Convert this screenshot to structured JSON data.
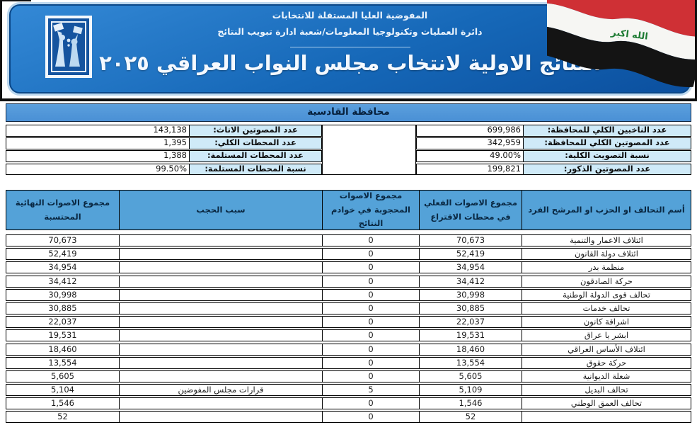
{
  "banner": {
    "line1": "المفوضية العليا المستقلة للانتخابات",
    "line2": "دائرة العمليات وتكنولوجيا المعلومات/شعبة ادارة تبويب النتائج",
    "title": "النتائج الاولية لانتخاب مجلس النواب العراقي ٢٠٢٥",
    "flag_text": "الله اكبر"
  },
  "governorate": {
    "title": "محافظة القادسية"
  },
  "summary": {
    "right": [
      {
        "label": "عدد الناخبين الكلي للمحافظة:",
        "value": "699,986"
      },
      {
        "label": "عدد المصوتين الكلي للمحافظة:",
        "value": "342,959"
      },
      {
        "label": "نسبة التصويت الكلية:",
        "value": "49.00%"
      },
      {
        "label": "عدد المصوتين الذكور:",
        "value": "199,821"
      }
    ],
    "left": [
      {
        "label": "عدد المصوتين الاناث:",
        "value": "143,138"
      },
      {
        "label": "عدد المحطات الكلي:",
        "value": "1,395"
      },
      {
        "label": "عدد المحطات المستلمة:",
        "value": "1,388"
      },
      {
        "label": "نسبة المحطات المستلمة:",
        "value": "99.50%"
      }
    ]
  },
  "results_table": {
    "headers": {
      "name": "أسم التحالف او الحزب او المرشح الفرد",
      "actual": "مجموع الاصوات الفعلي في محطات الاقتراع",
      "withheld": "مجموع الاصوات المحجوبة في خوادم النتائج",
      "reason": "سبب الحجب",
      "final": "مجموع الاصوات النهائية المحتسبة"
    },
    "rows": [
      {
        "name": "ائتلاف الاعمار والتنمية",
        "actual": "70,673",
        "withheld": "0",
        "reason": "",
        "final": "70,673"
      },
      {
        "name": "ائتلاف دولة القانون",
        "actual": "52,419",
        "withheld": "0",
        "reason": "",
        "final": "52,419"
      },
      {
        "name": "منظمة بدر",
        "actual": "34,954",
        "withheld": "0",
        "reason": "",
        "final": "34,954"
      },
      {
        "name": "حركة الصادقون",
        "actual": "34,412",
        "withheld": "0",
        "reason": "",
        "final": "34,412"
      },
      {
        "name": "تحالف قوى الدولة الوطنية",
        "actual": "30,998",
        "withheld": "0",
        "reason": "",
        "final": "30,998"
      },
      {
        "name": "تحالف خدمات",
        "actual": "30,885",
        "withheld": "0",
        "reason": "",
        "final": "30,885"
      },
      {
        "name": "اشراقة كانون",
        "actual": "22,037",
        "withheld": "0",
        "reason": "",
        "final": "22,037"
      },
      {
        "name": "ابشر يا عراق",
        "actual": "19,531",
        "withheld": "0",
        "reason": "",
        "final": "19,531"
      },
      {
        "name": "ائتلاف الأساس العراقي",
        "actual": "18,460",
        "withheld": "0",
        "reason": "",
        "final": "18,460"
      },
      {
        "name": "حركة حقوق",
        "actual": "13,554",
        "withheld": "0",
        "reason": "",
        "final": "13,554"
      },
      {
        "name": "شعلة الديوانية",
        "actual": "5,605",
        "withheld": "0",
        "reason": "",
        "final": "5,605"
      },
      {
        "name": "تحالف البديل",
        "actual": "5,109",
        "withheld": "5",
        "reason": "قرارات مجلس المفوضين",
        "final": "5,104"
      },
      {
        "name": "تحالف العمق الوطني",
        "actual": "1,546",
        "withheld": "0",
        "reason": "",
        "final": "1,546"
      },
      {
        "name": "",
        "actual": "52",
        "withheld": "0",
        "reason": "",
        "final": "52",
        "clipped": true
      }
    ]
  },
  "colors": {
    "banner_blue": "#1668b8",
    "governorate_bar_blue": "#4e96da",
    "table_header_blue": "#54a2d8",
    "summary_label_blue": "#cfeaf8",
    "flag_red": "#cf3035",
    "flag_green": "#1e7b33",
    "border_black": "#000000"
  }
}
